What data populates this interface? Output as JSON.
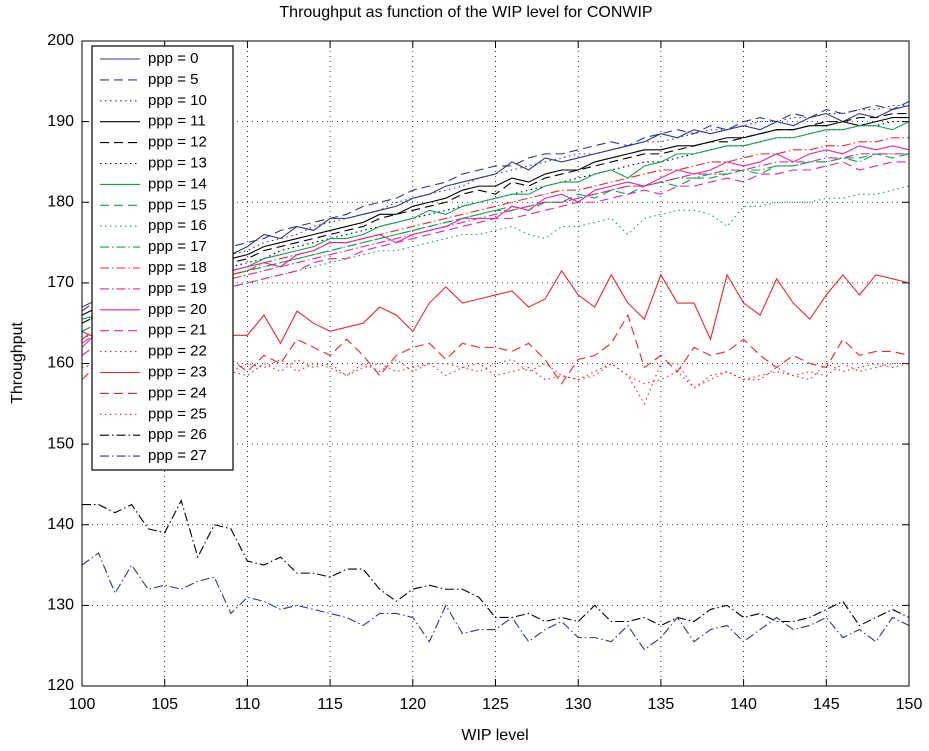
{
  "chart_data": {
    "type": "line",
    "title": "Throughput as function of the WIP level for CONWIP",
    "xlabel": "WIP level",
    "ylabel": "Throughput",
    "xlim": [
      100,
      150
    ],
    "ylim": [
      120,
      200
    ],
    "xticks": [
      100,
      105,
      110,
      115,
      120,
      125,
      130,
      135,
      140,
      145,
      150
    ],
    "yticks": [
      120,
      130,
      140,
      150,
      160,
      170,
      180,
      190,
      200
    ],
    "grid": true,
    "legend": "upper left",
    "x": [
      100,
      101,
      102,
      103,
      104,
      105,
      106,
      107,
      108,
      109,
      110,
      111,
      112,
      113,
      114,
      115,
      116,
      117,
      118,
      119,
      120,
      121,
      122,
      123,
      124,
      125,
      126,
      127,
      128,
      129,
      130,
      131,
      132,
      133,
      134,
      135,
      136,
      137,
      138,
      139,
      140,
      141,
      142,
      143,
      144,
      145,
      146,
      147,
      148,
      149,
      150
    ],
    "series": [
      {
        "name": "ppp = 0",
        "color": "#2b3795",
        "style": "solid",
        "values": [
          167,
          168,
          169,
          170,
          170.5,
          171.5,
          172,
          172.5,
          173,
          173.5,
          174.5,
          176,
          175.5,
          177,
          176.5,
          178,
          178,
          178.5,
          179,
          179.5,
          180.5,
          181,
          182,
          182.5,
          183,
          183.5,
          185,
          184,
          185.5,
          185,
          185.5,
          186,
          186.5,
          187,
          187.5,
          188.5,
          188,
          189,
          188.5,
          189,
          189.5,
          189,
          190,
          189.5,
          190.5,
          191,
          190,
          191,
          190.5,
          191.5,
          192
        ]
      },
      {
        "name": "ppp = 5",
        "color": "#2b3795",
        "style": "dashed",
        "values": [
          166.5,
          168,
          168.5,
          169.5,
          170.5,
          171,
          172,
          172.5,
          173.5,
          174.5,
          175,
          175.5,
          176.5,
          177,
          177.5,
          178,
          178.5,
          179.5,
          180,
          180.5,
          181.5,
          182,
          182.5,
          183.5,
          184,
          184.5,
          184.5,
          185.5,
          186,
          186,
          186.5,
          187,
          187.5,
          187,
          188,
          188.5,
          189,
          188.5,
          189.5,
          189,
          190,
          190.5,
          190,
          191,
          190.5,
          191.5,
          191,
          191.5,
          192,
          191.5,
          192.5
        ]
      },
      {
        "name": "ppp = 10",
        "color": "#2b3795",
        "style": "dotted",
        "values": [
          166,
          167,
          168,
          169,
          170,
          170.5,
          171.5,
          172,
          172.5,
          173.5,
          174,
          175,
          175.5,
          176,
          177,
          177.5,
          178,
          178.5,
          179,
          180,
          180.5,
          181,
          181.5,
          182,
          183,
          183.5,
          184,
          184.5,
          185,
          185.5,
          186,
          186,
          186.5,
          187,
          187.5,
          187.5,
          188,
          188.5,
          189,
          189,
          189.5,
          190,
          190,
          190.5,
          190.5,
          191,
          191,
          191.5,
          191.5,
          192,
          192
        ]
      },
      {
        "name": "ppp = 11",
        "color": "#000000",
        "style": "solid",
        "values": [
          166,
          167,
          168,
          169,
          169.5,
          170.5,
          171,
          171.5,
          172.5,
          173,
          173.5,
          174.5,
          175,
          175.5,
          176,
          176.5,
          177,
          177.5,
          178.5,
          178.5,
          179.5,
          180,
          180.5,
          181.5,
          182,
          182,
          183,
          182.5,
          183.5,
          184,
          184,
          185,
          185.5,
          186,
          186.5,
          186.5,
          187,
          187,
          187.5,
          188,
          188,
          188.5,
          189,
          189,
          189.5,
          189.5,
          190,
          189.5,
          190,
          190.5,
          190.5
        ]
      },
      {
        "name": "ppp = 12",
        "color": "#000000",
        "style": "dashed",
        "values": [
          165,
          166,
          167,
          168,
          169,
          170,
          170.5,
          171,
          172,
          172.5,
          173,
          174,
          174.5,
          175,
          175.5,
          176,
          176.5,
          177,
          178,
          178.5,
          179,
          179.5,
          180,
          181,
          181.5,
          181,
          182.5,
          182,
          183,
          183.5,
          184,
          184.5,
          185,
          185.5,
          186,
          186,
          186.5,
          187,
          187.5,
          187.5,
          188,
          188.5,
          189,
          189,
          189.5,
          190,
          190,
          190.5,
          190.5,
          191,
          191
        ]
      },
      {
        "name": "ppp = 13",
        "color": "#000000",
        "style": "dotted",
        "values": [
          165,
          166,
          166.5,
          167.5,
          168.5,
          169,
          170,
          170.5,
          171,
          172,
          172.5,
          173,
          174,
          174.5,
          175,
          175.5,
          176,
          176.5,
          177,
          177.5,
          178,
          178.5,
          179,
          179.5,
          180,
          180.5,
          181,
          181.5,
          182,
          182.5,
          183,
          183.5,
          184,
          184.5,
          185,
          185,
          185.5,
          186,
          186.5,
          187,
          187,
          187.5,
          188,
          188,
          188.5,
          189,
          189,
          189.5,
          189.5,
          190,
          190
        ]
      },
      {
        "name": "ppp = 14",
        "color": "#18a24f",
        "style": "solid",
        "values": [
          165.5,
          166,
          167,
          168,
          168.5,
          169.5,
          170,
          170.5,
          171,
          171.5,
          172,
          173,
          173.5,
          174,
          174.5,
          175.5,
          175.5,
          176,
          177,
          177.5,
          178,
          179,
          178.5,
          179.5,
          180,
          180.5,
          181,
          181,
          182,
          182.5,
          182.5,
          183.5,
          184,
          183,
          184.5,
          185,
          186,
          186,
          186.5,
          187,
          187,
          187.5,
          188,
          188,
          188.5,
          189,
          189,
          189.5,
          189.5,
          189,
          190
        ]
      },
      {
        "name": "ppp = 15",
        "color": "#18a24f",
        "style": "dashed",
        "values": [
          164,
          165,
          166,
          167,
          167.5,
          168.5,
          169,
          169.5,
          170,
          171,
          171.5,
          172,
          172.5,
          173,
          173.5,
          174,
          174.5,
          175,
          175.5,
          176,
          176.5,
          177,
          177.5,
          178,
          178.5,
          179,
          179.5,
          179,
          180,
          180,
          181,
          180.5,
          181.5,
          181,
          182,
          182.5,
          182,
          183,
          183,
          183.5,
          184,
          183.5,
          184.5,
          184.5,
          185,
          185,
          185.5,
          185.5,
          186,
          185.5,
          186
        ]
      },
      {
        "name": "ppp = 16",
        "color": "#18a24f",
        "style": "dotted",
        "values": [
          163,
          164,
          165,
          166,
          166.5,
          167.5,
          168,
          168.5,
          169,
          169.5,
          170,
          170.5,
          171,
          171.5,
          172,
          172.5,
          173,
          173.5,
          174,
          174,
          174.5,
          175,
          175.5,
          176,
          176,
          176.5,
          177,
          176,
          175.5,
          177,
          177,
          177.5,
          178,
          176,
          178,
          178.5,
          179,
          179,
          178.5,
          177,
          179.5,
          179.5,
          180,
          180,
          180,
          180.5,
          180.5,
          181,
          181,
          181.5,
          182
        ]
      },
      {
        "name": "ppp = 17",
        "color": "#18a24f",
        "style": "dashdot",
        "values": [
          164,
          165,
          166,
          167,
          168,
          168.5,
          169,
          170,
          170.5,
          171,
          171.5,
          172,
          172.5,
          173,
          173.5,
          174,
          174.5,
          175,
          175.5,
          176,
          176.5,
          177,
          177.5,
          178,
          178.5,
          179,
          179,
          179.5,
          180,
          180,
          180.5,
          181,
          181.5,
          182,
          182,
          182.5,
          183,
          183,
          183.5,
          183.5,
          184,
          184,
          184.5,
          184.5,
          185,
          185,
          185.5,
          185,
          186,
          186,
          186
        ]
      },
      {
        "name": "ppp = 18",
        "color": "#e62b2b",
        "style": "dashdot",
        "values": [
          163,
          164.5,
          165.5,
          166.5,
          167.5,
          168,
          169,
          169.5,
          170.5,
          171,
          171.5,
          172.5,
          173,
          173.5,
          174,
          175,
          175,
          175.5,
          176,
          176.5,
          177,
          177.5,
          178,
          178.5,
          179,
          179.5,
          180,
          180.5,
          181,
          181.5,
          181.5,
          182,
          182.5,
          183,
          183.5,
          184,
          184,
          184.5,
          185,
          185,
          185.5,
          186,
          186,
          186.5,
          186.5,
          187,
          187,
          187.5,
          187.5,
          188,
          188
        ]
      },
      {
        "name": "ppp = 19",
        "color": "#e0289b",
        "style": "dashdot",
        "values": [
          162.5,
          164,
          165,
          166,
          167,
          167.5,
          168.5,
          169,
          169.5,
          170.5,
          171,
          171.5,
          172,
          172.5,
          173,
          173.5,
          174,
          174.5,
          175,
          175.5,
          176,
          176.5,
          177,
          177.5,
          178,
          178.5,
          179,
          179.5,
          180,
          180,
          180.5,
          181,
          181.5,
          182,
          182,
          182.5,
          183,
          183.5,
          183.5,
          184,
          184,
          184.5,
          185,
          185,
          185,
          185.5,
          185.5,
          186,
          186,
          186,
          186
        ]
      },
      {
        "name": "ppp = 20",
        "color": "#e0289b",
        "style": "solid",
        "values": [
          162,
          164,
          165,
          166,
          167,
          168,
          169,
          169.5,
          170,
          171.5,
          172,
          172.5,
          172,
          173.5,
          174,
          175,
          175,
          175.5,
          176,
          175,
          176,
          176.5,
          177,
          178,
          178,
          178,
          179.5,
          179,
          180.5,
          181,
          180,
          181.5,
          182,
          182.5,
          182,
          183,
          184,
          183.5,
          184,
          185,
          184.5,
          185,
          186,
          185,
          186,
          186.5,
          186,
          187,
          186.5,
          187,
          186.5
        ]
      },
      {
        "name": "ppp = 21",
        "color": "#e0289b",
        "style": "dashed",
        "values": [
          161,
          162.5,
          163.5,
          164.5,
          165.5,
          166.5,
          167,
          168,
          168.5,
          169.5,
          170,
          170.5,
          171,
          171.5,
          172.5,
          173,
          173,
          174,
          174.5,
          175,
          175.5,
          176,
          176.5,
          177,
          177.5,
          178,
          178,
          178.5,
          179,
          179.5,
          180,
          180,
          180.5,
          181,
          181.5,
          181,
          182,
          182,
          182.5,
          183,
          182.5,
          183.5,
          183.5,
          184,
          184,
          184.5,
          185,
          184,
          184.5,
          185,
          185
        ]
      },
      {
        "name": "ppp = 22",
        "color": "#e62b2b",
        "style": "dotted",
        "values": [
          159.5,
          160,
          159,
          160.5,
          159,
          160,
          159.5,
          158.5,
          160,
          159,
          160,
          159.5,
          160.5,
          159,
          160,
          159.5,
          158.5,
          160,
          159,
          160.5,
          159,
          160,
          158.5,
          159.5,
          160,
          158.5,
          159,
          159.5,
          158,
          158.5,
          158,
          159,
          160,
          158.5,
          157.5,
          158,
          159,
          157,
          158.5,
          159,
          158,
          158,
          159.5,
          158.5,
          159,
          158.5,
          160,
          159,
          159.5,
          160,
          160
        ]
      },
      {
        "name": "ppp = 23",
        "color": "#e62b2b",
        "style": "solid",
        "values": [
          164,
          163,
          162.5,
          164,
          165,
          165.5,
          163.5,
          164,
          164,
          163.5,
          163.5,
          166,
          162.5,
          166.5,
          165,
          164,
          164.5,
          165,
          167,
          166,
          164,
          167.5,
          169.5,
          167.5,
          168,
          168.5,
          169,
          167,
          168,
          171.5,
          168.5,
          167,
          171,
          167.5,
          165.5,
          171,
          167.5,
          167.5,
          163,
          171,
          167.5,
          166,
          170.5,
          167.5,
          165.5,
          168.5,
          171,
          168.5,
          171,
          170.5,
          170
        ]
      },
      {
        "name": "ppp = 24",
        "color": "#e62b2b",
        "style": "dashed",
        "values": [
          158,
          160,
          161,
          162,
          160.5,
          161.5,
          161,
          160,
          161.5,
          160.5,
          159,
          161,
          160,
          163,
          162,
          161,
          163,
          161,
          158.5,
          161,
          162,
          162.5,
          160.5,
          162.5,
          162,
          162,
          161.5,
          162.5,
          160.5,
          157.5,
          160.5,
          161,
          162.5,
          166,
          159.5,
          161,
          159,
          162,
          161,
          161.5,
          163,
          161,
          159.5,
          161,
          160,
          159.5,
          163,
          161,
          161.5,
          161.5,
          161
        ]
      },
      {
        "name": "ppp = 25",
        "color": "#e62b2b",
        "style": "dotted",
        "values": [
          160,
          159,
          160.5,
          159.5,
          160,
          159,
          160.5,
          159.5,
          160,
          159,
          158.5,
          160,
          159,
          160.5,
          159.5,
          160,
          158.5,
          159.5,
          160,
          159,
          159.5,
          160,
          160,
          159.5,
          159,
          160,
          160.5,
          159,
          160,
          158.5,
          158,
          158.5,
          160,
          158.5,
          155,
          160,
          160,
          157,
          158,
          159,
          158,
          158.5,
          159,
          158.5,
          158,
          160,
          159,
          159.5,
          160,
          159.5,
          160
        ]
      },
      {
        "name": "ppp = 26",
        "color": "#000000",
        "style": "dashdot",
        "values": [
          142.5,
          142.5,
          141.5,
          142.5,
          139.5,
          139,
          143,
          136,
          140,
          139.5,
          135.5,
          135,
          136,
          134,
          134,
          133.5,
          134.5,
          134.5,
          132,
          130.5,
          132,
          132.5,
          132,
          132,
          131,
          128.5,
          128.5,
          129,
          128,
          128.5,
          128,
          130,
          128,
          128,
          128.5,
          127.5,
          128.5,
          128,
          129.5,
          130,
          128.5,
          129,
          128,
          128,
          128.5,
          129.5,
          130.5,
          127.5,
          128.5,
          129.5,
          128.5
        ]
      },
      {
        "name": "ppp = 27",
        "color": "#2b3795",
        "style": "dashdot",
        "values": [
          135,
          136.5,
          131.5,
          135,
          132,
          132.5,
          132,
          133,
          133.5,
          129,
          131,
          130.5,
          129.5,
          130,
          129.5,
          129,
          128.5,
          127.5,
          129,
          129,
          128.5,
          125.5,
          130,
          126.5,
          127,
          127,
          128.5,
          125.5,
          127,
          128,
          126,
          126,
          125.5,
          127.5,
          124.5,
          126,
          128.5,
          125.5,
          127,
          127.5,
          125.5,
          127,
          128.5,
          127,
          127.5,
          128.5,
          126,
          127,
          125.5,
          128.5,
          127.5
        ]
      }
    ]
  }
}
